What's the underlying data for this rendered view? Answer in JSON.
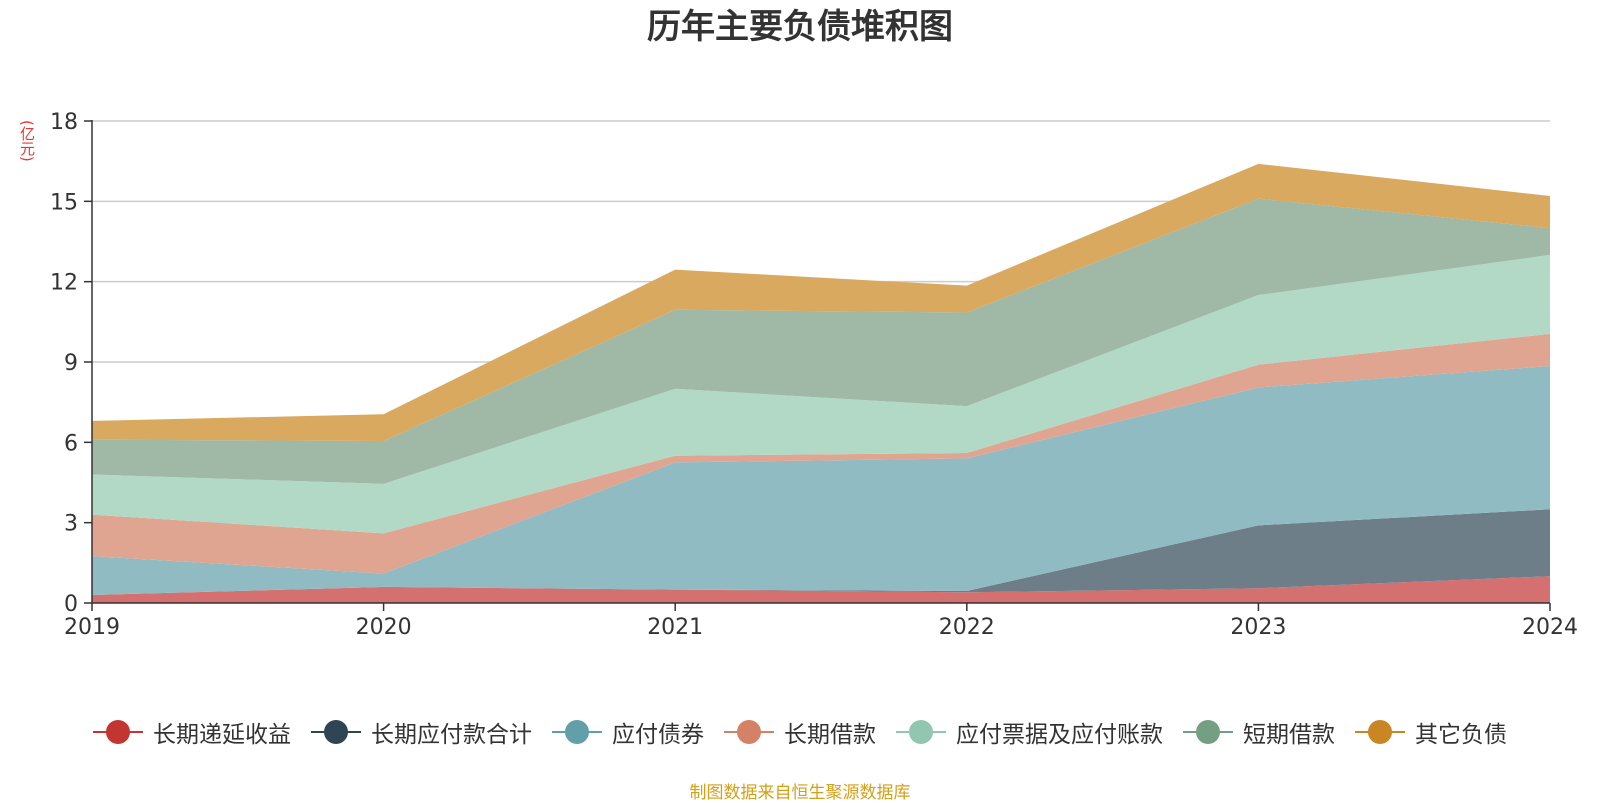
{
  "chart_data": {
    "type": "area",
    "stacked": true,
    "title": "历年主要负债堆积图",
    "ylabel": "(亿元)",
    "xlabel": "",
    "x": [
      "2019",
      "2020",
      "2021",
      "2022",
      "2023",
      "2024"
    ],
    "ylim": [
      0,
      18
    ],
    "yticks": [
      0,
      3,
      6,
      9,
      12,
      15,
      18
    ],
    "grid": true,
    "legend_position": "bottom",
    "series": [
      {
        "name": "长期递延收益",
        "color": "#c23531",
        "fill": "#d47070",
        "values": [
          0.3,
          0.6,
          0.5,
          0.4,
          0.55,
          1.0
        ]
      },
      {
        "name": "长期应付款合计",
        "color": "#2f4554",
        "fill": "#6e7e89",
        "values": [
          0,
          0,
          0,
          0.05,
          2.35,
          2.5
        ]
      },
      {
        "name": "应付债券",
        "color": "#61a0a8",
        "fill": "#91bbc2",
        "values": [
          1.45,
          0.5,
          4.75,
          4.95,
          5.15,
          5.35
        ]
      },
      {
        "name": "长期借款",
        "color": "#d48265",
        "fill": "#e0a591",
        "values": [
          1.55,
          1.5,
          0.25,
          0.2,
          0.85,
          1.2
        ]
      },
      {
        "name": "应付票据及应付账款",
        "color": "#91c7ae",
        "fill": "#b2d9c6",
        "values": [
          1.5,
          1.85,
          2.5,
          1.75,
          2.6,
          2.95
        ]
      },
      {
        "name": "短期借款",
        "color": "#749f83",
        "fill": "#9fb9a6",
        "values": [
          1.3,
          1.6,
          2.95,
          3.5,
          3.6,
          1.0
        ]
      },
      {
        "name": "其它负债",
        "color": "#ca8622",
        "fill": "#d9a95f",
        "values": [
          0.7,
          1.0,
          1.5,
          1.0,
          1.3,
          1.2
        ]
      }
    ]
  },
  "footer": {
    "source": "制图数据来自恒生聚源数据库"
  }
}
